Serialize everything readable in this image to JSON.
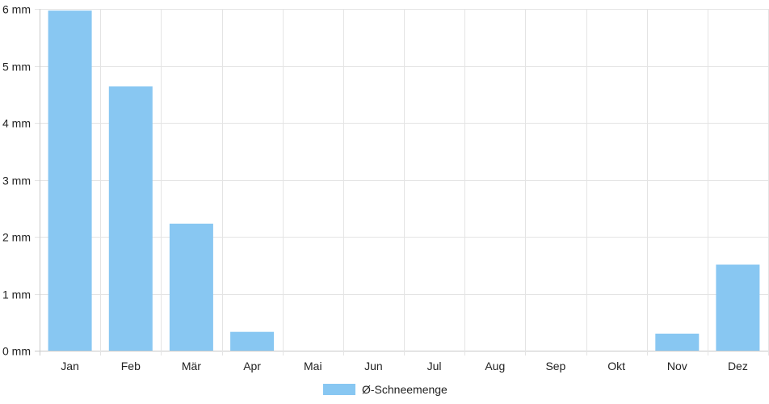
{
  "chart_data": {
    "type": "bar",
    "categories": [
      "Jan",
      "Feb",
      "Mär",
      "Apr",
      "Mai",
      "Jun",
      "Jul",
      "Aug",
      "Sep",
      "Okt",
      "Nov",
      "Dez"
    ],
    "series": [
      {
        "name": "Ø-Schneemenge",
        "values": [
          5.97,
          4.64,
          2.23,
          0.33,
          0,
          0,
          0,
          0,
          0,
          0,
          0.3,
          1.51
        ],
        "color": "#88c7f2"
      }
    ],
    "y_ticks": [
      {
        "value": 0,
        "label": "0 mm"
      },
      {
        "value": 1,
        "label": "1 mm"
      },
      {
        "value": 2,
        "label": "2 mm"
      },
      {
        "value": 3,
        "label": "3 mm"
      },
      {
        "value": 4,
        "label": "4 mm"
      },
      {
        "value": 5,
        "label": "5 mm"
      },
      {
        "value": 6,
        "label": "6 mm"
      }
    ],
    "ylim": [
      0,
      6
    ],
    "grid": true,
    "legend_position": "bottom-center",
    "title": "",
    "xlabel": "",
    "ylabel": ""
  }
}
